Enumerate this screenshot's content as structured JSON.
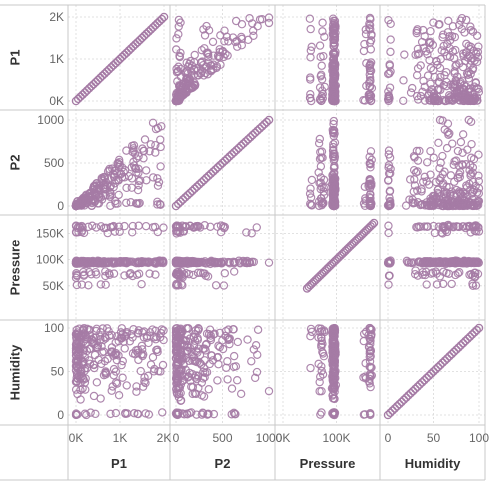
{
  "chart_data": {
    "type": "scatter",
    "title": "",
    "marker": "open-circle",
    "colors": {
      "marker": "#a57ba5",
      "grid": "#d9d9d9",
      "border": "#c8c8c8",
      "text": "#333333",
      "tick": "#666666"
    },
    "grid": true,
    "variables": [
      {
        "name": "P1",
        "range": [
          0,
          2000
        ],
        "ticks": [
          {
            "v": 0,
            "label": "0K"
          },
          {
            "v": 1000,
            "label": "1K"
          },
          {
            "v": 2000,
            "label": "2K"
          }
        ]
      },
      {
        "name": "P2",
        "range": [
          0,
          1000
        ],
        "ticks": [
          {
            "v": 0,
            "label": "0"
          },
          {
            "v": 500,
            "label": "500"
          },
          {
            "v": 1000,
            "label": "1000"
          }
        ]
      },
      {
        "name": "Pressure",
        "range": [
          0,
          170000
        ],
        "row_ticks": [
          {
            "v": 50000,
            "label": "50K"
          },
          {
            "v": 100000,
            "label": "100K"
          },
          {
            "v": 150000,
            "label": "150K"
          }
        ],
        "col_ticks": [
          {
            "v": 0,
            "label": "0K"
          },
          {
            "v": 100000,
            "label": "100K"
          }
        ]
      },
      {
        "name": "Humidity",
        "range": [
          0,
          100
        ],
        "ticks": [
          {
            "v": 0,
            "label": "0"
          },
          {
            "v": 50,
            "label": "50"
          },
          {
            "v": 100,
            "label": "100"
          }
        ]
      }
    ]
  }
}
